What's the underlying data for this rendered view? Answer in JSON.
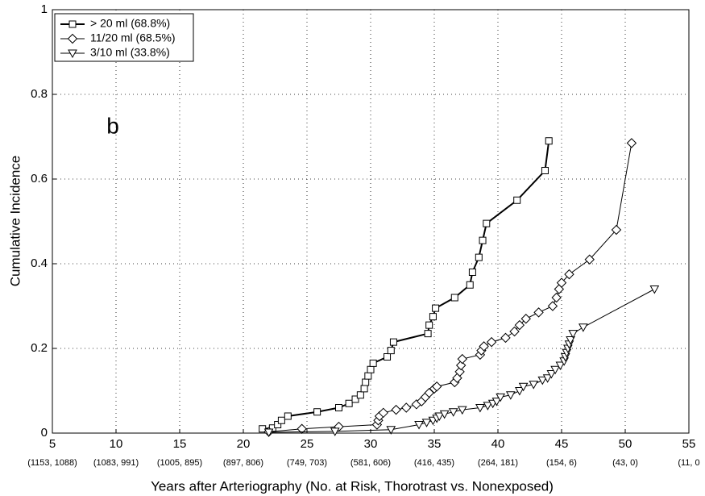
{
  "chart_data": {
    "type": "line",
    "x_label": "Years after Arteriography (No. at Risk, Thorotrast vs. Nonexposed)",
    "y_label": "Cumulative Incidence",
    "annotation": "b",
    "xlim": [
      5,
      55
    ],
    "ylim": [
      0,
      1
    ],
    "xticks": [
      5,
      10,
      15,
      20,
      25,
      30,
      35,
      40,
      45,
      50,
      55
    ],
    "x_tick_sublabels": [
      "(1153, 1088)",
      "(1083, 991)",
      "(1005, 895)",
      "(897, 806)",
      "(749, 703)",
      "(581, 606)",
      "(416, 435)",
      "(264, 181)",
      "(154, 6)",
      "(43, 0)",
      "(11, 0"
    ],
    "yticks": [
      0,
      0.2,
      0.4,
      0.6,
      0.8,
      1
    ],
    "grid": true,
    "legend_position": "upper-left",
    "series": [
      {
        "name": "> 20 ml (68.8%)",
        "color": "#000000",
        "marker": "square",
        "line_width": 2,
        "x": [
          21.5,
          22.3,
          22.7,
          23.0,
          23.5,
          25.8,
          27.5,
          28.3,
          28.8,
          29.2,
          29.5,
          29.6,
          29.8,
          30.0,
          30.2,
          31.3,
          31.6,
          31.8,
          34.5,
          34.6,
          34.9,
          35.1,
          36.6,
          37.8,
          38.0,
          38.5,
          38.8,
          39.1,
          41.5,
          43.7,
          44.0
        ],
        "values": [
          0.01,
          0.012,
          0.02,
          0.03,
          0.04,
          0.05,
          0.06,
          0.07,
          0.08,
          0.09,
          0.105,
          0.12,
          0.135,
          0.15,
          0.165,
          0.18,
          0.195,
          0.215,
          0.235,
          0.255,
          0.275,
          0.295,
          0.32,
          0.35,
          0.38,
          0.415,
          0.455,
          0.495,
          0.55,
          0.62,
          0.69
        ]
      },
      {
        "name": "11/20 ml (68.5%)",
        "color": "#000000",
        "marker": "diamond",
        "line_width": 1,
        "x": [
          22.0,
          24.6,
          27.5,
          30.5,
          30.6,
          30.7,
          31.0,
          32.0,
          32.8,
          33.6,
          34.0,
          34.3,
          34.6,
          35.0,
          35.2,
          36.6,
          36.8,
          37.0,
          37.1,
          37.2,
          38.6,
          38.7,
          38.9,
          39.5,
          40.6,
          41.3,
          41.7,
          42.2,
          43.2,
          44.3,
          44.6,
          44.8,
          45.0,
          45.6,
          47.2,
          49.3,
          50.5
        ],
        "values": [
          0.003,
          0.01,
          0.015,
          0.02,
          0.03,
          0.04,
          0.048,
          0.055,
          0.06,
          0.068,
          0.075,
          0.085,
          0.095,
          0.105,
          0.11,
          0.12,
          0.13,
          0.145,
          0.16,
          0.175,
          0.185,
          0.195,
          0.205,
          0.215,
          0.225,
          0.24,
          0.255,
          0.27,
          0.285,
          0.3,
          0.32,
          0.34,
          0.355,
          0.375,
          0.41,
          0.48,
          0.685
        ]
      },
      {
        "name": "3/10 ml (33.8%)",
        "color": "#000000",
        "marker": "triangle-down",
        "line_width": 1,
        "x": [
          22.0,
          27.2,
          31.6,
          33.8,
          34.4,
          34.9,
          35.2,
          35.4,
          35.8,
          36.5,
          37.2,
          38.6,
          39.2,
          39.6,
          39.9,
          40.2,
          41.0,
          41.7,
          42.0,
          42.8,
          43.5,
          43.9,
          44.2,
          44.5,
          44.9,
          45.2,
          45.3,
          45.4,
          45.5,
          45.6,
          45.7,
          45.9,
          46.7,
          52.3
        ],
        "values": [
          0.002,
          0.004,
          0.008,
          0.02,
          0.025,
          0.03,
          0.035,
          0.04,
          0.045,
          0.05,
          0.055,
          0.06,
          0.065,
          0.07,
          0.075,
          0.085,
          0.09,
          0.1,
          0.11,
          0.115,
          0.125,
          0.13,
          0.14,
          0.15,
          0.16,
          0.17,
          0.18,
          0.19,
          0.2,
          0.21,
          0.22,
          0.235,
          0.25,
          0.34
        ]
      }
    ]
  }
}
